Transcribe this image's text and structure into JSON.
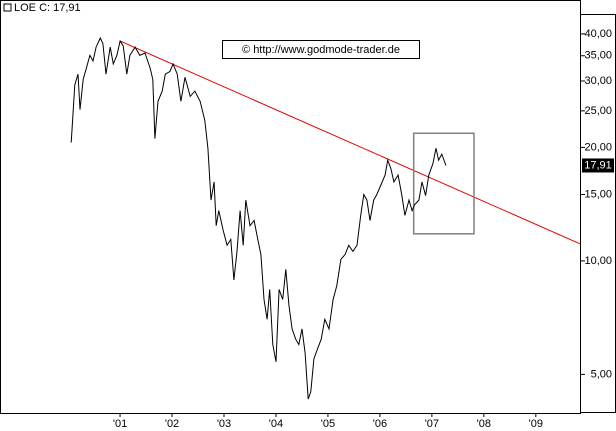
{
  "chart_data": {
    "type": "line",
    "legend_label": "LOE C: 17,91",
    "watermark": "© http://www.godmode-trader.de",
    "last_price_label": "17,91",
    "log_scale": true,
    "x": [
      2000.06,
      2000.13,
      2000.19,
      2000.23,
      2000.29,
      2000.35,
      2000.42,
      2000.48,
      2000.54,
      2000.62,
      2000.67,
      2000.73,
      2000.81,
      2000.87,
      2000.94,
      2001.0,
      2001.06,
      2001.13,
      2001.19,
      2001.29,
      2001.38,
      2001.48,
      2001.58,
      2001.63,
      2001.67,
      2001.73,
      2001.81,
      2001.87,
      2001.96,
      2002.02,
      2002.1,
      2002.17,
      2002.25,
      2002.35,
      2002.44,
      2002.54,
      2002.63,
      2002.69,
      2002.75,
      2002.81,
      2002.85,
      2002.9,
      2002.98,
      2003.06,
      2003.13,
      2003.19,
      2003.25,
      2003.31,
      2003.37,
      2003.42,
      2003.5,
      2003.58,
      2003.65,
      2003.71,
      2003.77,
      2003.83,
      2003.88,
      2003.94,
      2004.0,
      2004.06,
      2004.13,
      2004.19,
      2004.25,
      2004.31,
      2004.38,
      2004.44,
      2004.5,
      2004.56,
      2004.62,
      2004.67,
      2004.73,
      2004.81,
      2004.87,
      2004.94,
      2005.02,
      2005.1,
      2005.17,
      2005.25,
      2005.33,
      2005.4,
      2005.48,
      2005.56,
      2005.63,
      2005.69,
      2005.75,
      2005.81,
      2005.88,
      2005.94,
      2006.02,
      2006.1,
      2006.15,
      2006.21,
      2006.27,
      2006.35,
      2006.42,
      2006.48,
      2006.56,
      2006.62,
      2006.67,
      2006.75,
      2006.81,
      2006.88,
      2006.94,
      2007.02,
      2007.08,
      2007.13,
      2007.19,
      2007.27
    ],
    "series": [
      {
        "color": "#000000",
        "values": [
          20.6,
          29.3,
          31.3,
          25.2,
          30.3,
          32.4,
          35.1,
          33.9,
          36.9,
          39.0,
          37.7,
          31.3,
          36.9,
          33.3,
          35.1,
          38.3,
          37.2,
          31.3,
          35.1,
          36.9,
          35.1,
          35.6,
          32.4,
          30.3,
          21.1,
          26.5,
          28.2,
          31.3,
          31.8,
          33.3,
          31.3,
          26.5,
          30.7,
          27.3,
          28.2,
          26.5,
          23.6,
          19.9,
          14.5,
          16.2,
          12.4,
          13.6,
          12.1,
          11.0,
          11.4,
          8.9,
          10.6,
          13.6,
          11.0,
          14.5,
          12.4,
          12.8,
          11.4,
          10.4,
          7.9,
          7.0,
          8.4,
          6.0,
          5.4,
          8.4,
          7.9,
          9.5,
          7.6,
          6.6,
          6.2,
          6.0,
          6.6,
          5.7,
          4.3,
          4.5,
          5.5,
          5.9,
          6.2,
          7.0,
          6.6,
          7.9,
          8.6,
          10.1,
          10.4,
          11.0,
          10.6,
          11.0,
          13.2,
          15.0,
          14.5,
          12.8,
          14.5,
          15.0,
          15.9,
          16.9,
          18.5,
          17.6,
          16.2,
          16.9,
          15.0,
          13.2,
          14.5,
          13.6,
          14.1,
          14.5,
          16.2,
          14.9,
          16.9,
          18.1,
          19.9,
          18.5,
          19.2,
          17.91
        ]
      }
    ],
    "trendline": {
      "color": "#e00000",
      "x": [
        2001.0,
        2009.85
      ],
      "values": [
        38.3,
        11.1
      ]
    },
    "highlight_box": {
      "color": "#808080",
      "x": [
        2006.65,
        2007.81
      ],
      "values": [
        21.8,
        11.8
      ]
    },
    "xlim": [
      1998.69,
      2009.85
    ],
    "ylim": [
      3.95,
      49.2
    ],
    "xticks": [
      {
        "value": 2001,
        "label": "'01"
      },
      {
        "value": 2002,
        "label": "'02"
      },
      {
        "value": 2003,
        "label": "'03"
      },
      {
        "value": 2004,
        "label": "'04"
      },
      {
        "value": 2005,
        "label": "'05"
      },
      {
        "value": 2006,
        "label": "'06"
      },
      {
        "value": 2007,
        "label": "'07"
      },
      {
        "value": 2008,
        "label": "'08"
      },
      {
        "value": 2009,
        "label": "'09"
      }
    ],
    "yticks": [
      {
        "value": 5,
        "label": "5,00"
      },
      {
        "value": 10,
        "label": "10,00"
      },
      {
        "value": 15,
        "label": "15,00"
      },
      {
        "value": 20,
        "label": "20,00"
      },
      {
        "value": 25,
        "label": "25,00"
      },
      {
        "value": 30,
        "label": "30,00"
      },
      {
        "value": 35,
        "label": "35,00"
      },
      {
        "value": 40,
        "label": "40,00"
      }
    ]
  }
}
